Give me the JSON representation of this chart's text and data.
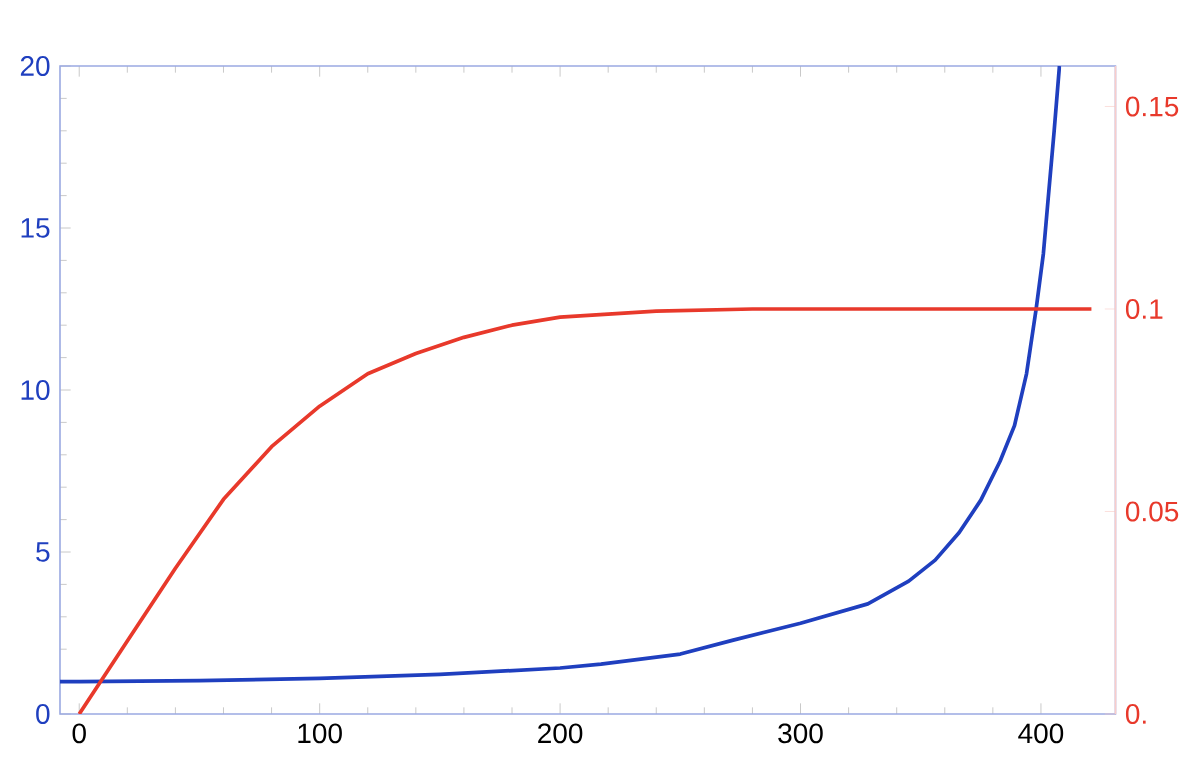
{
  "chart_data": {
    "type": "line",
    "xlim": [
      -8,
      431
    ],
    "xticks": [
      0,
      100,
      200,
      300,
      400
    ],
    "ylim": [
      0,
      20
    ],
    "yticks": [
      0,
      5,
      10,
      15,
      20
    ],
    "y2lim": [
      0,
      0.16
    ],
    "y2ticks": [
      {
        "value": 0,
        "label": "0."
      },
      0.05,
      0.1,
      0.15
    ],
    "series": [
      {
        "color": "#1f3fbf",
        "x": [
          -8,
          0,
          50,
          100,
          150,
          200,
          217,
          250,
          272,
          300,
          328,
          345,
          356,
          366,
          375,
          383,
          389,
          394,
          398,
          401,
          403,
          405.5,
          407.7
        ],
        "values": [
          1,
          1,
          1.03,
          1.1,
          1.22,
          1.42,
          1.54,
          1.85,
          2.28,
          2.8,
          3.4,
          4.1,
          4.75,
          5.6,
          6.6,
          7.8,
          8.9,
          10.5,
          12.5,
          14.2,
          15.9,
          18,
          20
        ]
      },
      {
        "color": "#e8392b",
        "axis": "y2",
        "x": [
          0,
          10,
          20,
          40,
          60,
          80,
          100,
          120,
          140,
          160,
          180,
          200,
          240,
          280,
          350,
          421
        ],
        "values": [
          0,
          0.009,
          0.018,
          0.036,
          0.053,
          0.066,
          0.076,
          0.084,
          0.089,
          0.093,
          0.096,
          0.098,
          0.0995,
          0.1,
          0.1,
          0.1
        ]
      }
    ]
  }
}
